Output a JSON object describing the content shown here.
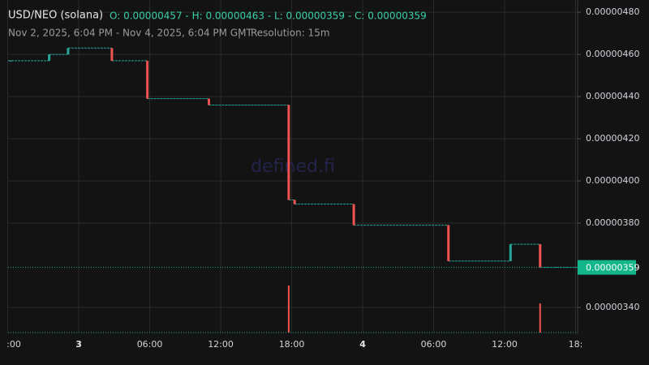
{
  "chart_data": {
    "type": "candlestick",
    "title": "USD/NEO (solana)",
    "ohlc_summary": "O: 0.00000457 - H: 0.00000463 - L: 0.00000359 - C: 0.00000359",
    "range_text": "Nov 2, 2025, 6:04 PM - Nov 4, 2025, 6:04 PM GMT",
    "separator": "|",
    "resolution_text": "Resolution: 15m",
    "watermark": "defined.fi",
    "up_color": "#26a69a",
    "down_color": "#ef5350",
    "grid": true,
    "x": [
      -5.75,
      -2.5,
      -0.9,
      2.8,
      5.8,
      11.0,
      17.75,
      18.25,
      23.25,
      31.25,
      36.5,
      39.0
    ],
    "open": [
      4.57e-06,
      4.57e-06,
      4.6e-06,
      4.63e-06,
      4.57e-06,
      4.39e-06,
      4.36e-06,
      3.91e-06,
      3.89e-06,
      3.79e-06,
      3.62e-06,
      3.7e-06
    ],
    "high": [
      4.57e-06,
      4.6e-06,
      4.63e-06,
      4.63e-06,
      4.57e-06,
      4.39e-06,
      4.36e-06,
      3.91e-06,
      3.89e-06,
      3.79e-06,
      3.7e-06,
      3.7e-06
    ],
    "low": [
      4.57e-06,
      4.57e-06,
      4.6e-06,
      4.57e-06,
      4.39e-06,
      4.36e-06,
      3.91e-06,
      3.89e-06,
      3.79e-06,
      3.62e-06,
      3.62e-06,
      3.59e-06
    ],
    "close": [
      4.57e-06,
      4.6e-06,
      4.63e-06,
      4.57e-06,
      4.39e-06,
      4.36e-06,
      3.91e-06,
      3.89e-06,
      3.79e-06,
      3.62e-06,
      3.7e-06,
      3.59e-06
    ],
    "volume": [
      0,
      0,
      0,
      0,
      0,
      0,
      100,
      0,
      0,
      0,
      0,
      62
    ],
    "xlim": [
      -5.97,
      42.17
    ],
    "xticks": [
      {
        "value": -6,
        "label": ":00"
      },
      {
        "value": 0,
        "label": "3"
      },
      {
        "value": 6,
        "label": "06:00"
      },
      {
        "value": 12,
        "label": "12:00"
      },
      {
        "value": 18,
        "label": "18:00"
      },
      {
        "value": 24,
        "label": "4"
      },
      {
        "value": 30,
        "label": "06:00"
      },
      {
        "value": 36,
        "label": "12:00"
      },
      {
        "value": 42,
        "label": "18:"
      }
    ],
    "ylim": [
      3.281e-06,
      4.858e-06
    ],
    "yticks": [
      {
        "value": 3.4e-06,
        "label": "0.00000340"
      },
      {
        "value": 3.8e-06,
        "label": "0.00000380"
      },
      {
        "value": 4e-06,
        "label": "0.00000400"
      },
      {
        "value": 4.2e-06,
        "label": "0.00000420"
      },
      {
        "value": 4.4e-06,
        "label": "0.00000440"
      },
      {
        "value": 4.6e-06,
        "label": "0.00000460"
      },
      {
        "value": 4.8e-06,
        "label": "0.00000480"
      }
    ],
    "current_price": {
      "value": 3.59e-06,
      "label": "0.00000359"
    }
  }
}
